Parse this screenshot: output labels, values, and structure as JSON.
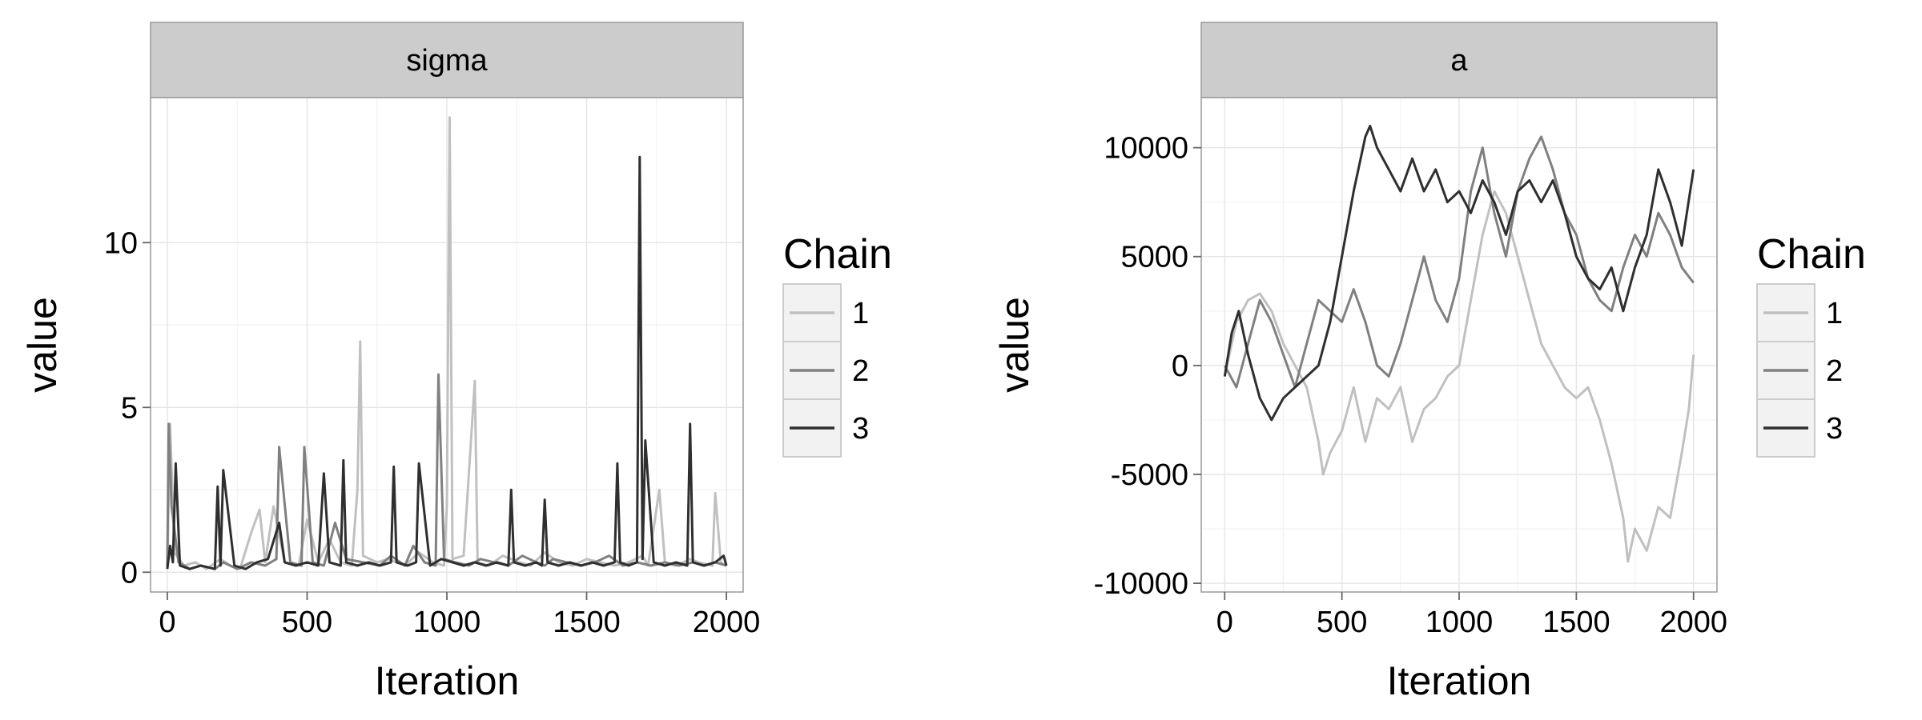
{
  "chart_data": [
    {
      "type": "line",
      "panel_title": "sigma",
      "xlabel": "Iteration",
      "ylabel": "value",
      "xlim": [
        -60,
        2060
      ],
      "ylim": [
        -0.6,
        14.4
      ],
      "x_ticks": [
        0,
        500,
        1000,
        1500,
        2000
      ],
      "x_tick_labels": [
        "0",
        "500",
        "1000",
        "1500",
        "2000"
      ],
      "y_ticks": [
        0,
        5,
        10
      ],
      "y_tick_labels": [
        "0",
        "5",
        "10"
      ],
      "grid": true,
      "legend": {
        "title": "Chain",
        "position": "right",
        "entries": [
          "1",
          "2",
          "3"
        ]
      },
      "series": [
        {
          "name": "1",
          "color": "#c0c0c0",
          "x": [
            0,
            10,
            25,
            60,
            100,
            140,
            190,
            225,
            260,
            300,
            330,
            350,
            380,
            420,
            470,
            500,
            540,
            580,
            620,
            660,
            680,
            690,
            700,
            750,
            790,
            850,
            900,
            950,
            990,
            1000,
            1010,
            1020,
            1060,
            1100,
            1110,
            1150,
            1200,
            1260,
            1300,
            1350,
            1400,
            1450,
            1500,
            1550,
            1600,
            1650,
            1700,
            1720,
            1760,
            1780,
            1820,
            1870,
            1900,
            1950,
            1960,
            1980,
            2000
          ],
          "y": [
            0.1,
            4.5,
            0.6,
            0.2,
            0.3,
            0.1,
            0.4,
            0.2,
            0.1,
            1.2,
            1.9,
            0.3,
            2.0,
            0.3,
            0.2,
            1.6,
            0.3,
            1.0,
            0.3,
            0.2,
            2.5,
            7.0,
            0.5,
            0.3,
            0.4,
            0.2,
            0.6,
            0.3,
            0.2,
            2.0,
            13.8,
            0.4,
            0.5,
            5.8,
            0.3,
            0.2,
            0.5,
            0.3,
            0.2,
            0.6,
            0.3,
            0.2,
            0.4,
            0.3,
            0.2,
            0.3,
            0.5,
            0.2,
            2.5,
            0.3,
            0.2,
            0.4,
            0.3,
            0.2,
            2.4,
            0.3,
            0.2
          ]
        },
        {
          "name": "2",
          "color": "#808080",
          "x": [
            0,
            5,
            15,
            40,
            80,
            120,
            170,
            200,
            250,
            300,
            350,
            390,
            400,
            440,
            480,
            490,
            520,
            560,
            600,
            640,
            700,
            760,
            800,
            850,
            880,
            920,
            960,
            970,
            990,
            1030,
            1080,
            1120,
            1170,
            1220,
            1270,
            1320,
            1350,
            1380,
            1430,
            1480,
            1530,
            1580,
            1630,
            1680,
            1730,
            1780,
            1830,
            1880,
            1920,
            1960,
            2000
          ],
          "y": [
            0.2,
            4.5,
            2.0,
            0.3,
            0.1,
            0.2,
            0.1,
            0.3,
            0.1,
            0.3,
            0.2,
            0.4,
            3.8,
            0.3,
            0.2,
            3.8,
            0.3,
            0.2,
            1.5,
            0.4,
            0.3,
            0.2,
            0.5,
            0.2,
            0.8,
            0.3,
            0.2,
            6.0,
            0.4,
            0.3,
            0.2,
            0.4,
            0.3,
            0.2,
            0.5,
            0.3,
            0.2,
            0.4,
            0.3,
            0.2,
            0.3,
            0.5,
            0.2,
            0.3,
            0.2,
            0.3,
            0.2,
            0.3,
            0.2,
            0.3,
            0.2
          ]
        },
        {
          "name": "3",
          "color": "#2f2f2f",
          "x": [
            0,
            10,
            20,
            30,
            45,
            80,
            120,
            170,
            180,
            190,
            200,
            240,
            280,
            320,
            360,
            400,
            420,
            460,
            500,
            540,
            560,
            580,
            620,
            630,
            640,
            680,
            720,
            760,
            800,
            810,
            820,
            860,
            890,
            900,
            940,
            980,
            1020,
            1060,
            1100,
            1140,
            1180,
            1220,
            1230,
            1240,
            1280,
            1320,
            1340,
            1350,
            1360,
            1400,
            1440,
            1480,
            1520,
            1560,
            1600,
            1610,
            1620,
            1650,
            1680,
            1690,
            1700,
            1710,
            1740,
            1780,
            1820,
            1860,
            1870,
            1880,
            1920,
            1960,
            1990,
            2000
          ],
          "y": [
            0.1,
            0.8,
            0.3,
            3.3,
            0.2,
            0.1,
            0.2,
            0.1,
            2.6,
            0.2,
            3.1,
            0.2,
            0.1,
            0.3,
            0.4,
            1.5,
            0.3,
            0.2,
            0.3,
            0.2,
            3.0,
            0.3,
            0.2,
            3.4,
            0.3,
            0.2,
            0.3,
            0.2,
            0.3,
            3.2,
            0.3,
            0.2,
            0.3,
            3.3,
            0.2,
            0.4,
            0.3,
            0.2,
            0.3,
            0.2,
            0.3,
            0.2,
            2.5,
            0.3,
            0.2,
            0.3,
            0.2,
            2.2,
            0.3,
            0.2,
            0.3,
            0.2,
            0.3,
            0.2,
            0.3,
            3.3,
            0.3,
            0.2,
            0.3,
            12.6,
            0.4,
            4.0,
            0.3,
            0.2,
            0.3,
            0.2,
            4.5,
            0.3,
            0.2,
            0.3,
            0.5,
            0.2
          ]
        }
      ]
    },
    {
      "type": "line",
      "panel_title": "a",
      "xlabel": "Iteration",
      "ylabel": "value",
      "xlim": [
        -100,
        2100
      ],
      "ylim": [
        -10400,
        12300
      ],
      "x_ticks": [
        0,
        500,
        1000,
        1500,
        2000
      ],
      "x_tick_labels": [
        "0",
        "500",
        "1000",
        "1500",
        "2000"
      ],
      "y_ticks": [
        -10000,
        -5000,
        0,
        5000,
        10000
      ],
      "y_tick_labels": [
        "-10000",
        "-5000",
        "0",
        "5000",
        "10000"
      ],
      "grid": true,
      "legend": {
        "title": "Chain",
        "position": "right",
        "entries": [
          "1",
          "2",
          "3"
        ]
      },
      "series": [
        {
          "name": "1",
          "color": "#c0c0c0",
          "x": [
            0,
            50,
            100,
            150,
            200,
            250,
            300,
            350,
            400,
            420,
            450,
            500,
            550,
            600,
            650,
            700,
            750,
            800,
            850,
            900,
            950,
            1000,
            1050,
            1100,
            1150,
            1200,
            1250,
            1300,
            1350,
            1400,
            1450,
            1500,
            1550,
            1600,
            1650,
            1700,
            1720,
            1750,
            1800,
            1850,
            1900,
            1950,
            1980,
            2000
          ],
          "y": [
            -500,
            2000,
            3000,
            3300,
            2500,
            1000,
            0,
            -1000,
            -3500,
            -5000,
            -4000,
            -3000,
            -1000,
            -3500,
            -1500,
            -2000,
            -1000,
            -3500,
            -2000,
            -1500,
            -500,
            0,
            3000,
            6000,
            8000,
            7000,
            5000,
            3000,
            1000,
            0,
            -1000,
            -1500,
            -1000,
            -2500,
            -4500,
            -7000,
            -9000,
            -7500,
            -8500,
            -6500,
            -7000,
            -4000,
            -2000,
            500
          ]
        },
        {
          "name": "2",
          "color": "#808080",
          "x": [
            0,
            50,
            100,
            150,
            200,
            250,
            300,
            350,
            400,
            450,
            500,
            550,
            600,
            650,
            700,
            750,
            800,
            850,
            900,
            950,
            1000,
            1050,
            1100,
            1150,
            1200,
            1250,
            1300,
            1350,
            1400,
            1450,
            1500,
            1550,
            1600,
            1650,
            1700,
            1750,
            1800,
            1850,
            1900,
            1950,
            2000
          ],
          "y": [
            0,
            -1000,
            1000,
            3000,
            2000,
            500,
            -1000,
            1000,
            3000,
            2500,
            2000,
            3500,
            2000,
            0,
            -500,
            1000,
            3000,
            5000,
            3000,
            2000,
            4000,
            8000,
            10000,
            7000,
            5000,
            8000,
            9500,
            10500,
            9000,
            7000,
            6000,
            4000,
            3000,
            2500,
            4500,
            6000,
            5000,
            7000,
            6000,
            4500,
            3800
          ]
        },
        {
          "name": "3",
          "color": "#2f2f2f",
          "x": [
            0,
            30,
            60,
            100,
            150,
            200,
            250,
            300,
            350,
            400,
            450,
            500,
            550,
            600,
            620,
            650,
            700,
            750,
            800,
            850,
            900,
            950,
            1000,
            1050,
            1100,
            1150,
            1200,
            1250,
            1300,
            1350,
            1400,
            1450,
            1500,
            1550,
            1600,
            1650,
            1700,
            1750,
            1800,
            1850,
            1900,
            1950,
            2000
          ],
          "y": [
            -500,
            1500,
            2500,
            500,
            -1500,
            -2500,
            -1500,
            -1000,
            -500,
            0,
            2000,
            5000,
            8000,
            10500,
            11000,
            10000,
            9000,
            8000,
            9500,
            8000,
            9000,
            7500,
            8000,
            7000,
            8500,
            7500,
            6000,
            8000,
            8500,
            7500,
            8500,
            7000,
            5000,
            4000,
            3500,
            4500,
            2500,
            4500,
            6000,
            9000,
            7500,
            5500,
            9000
          ]
        }
      ]
    }
  ]
}
